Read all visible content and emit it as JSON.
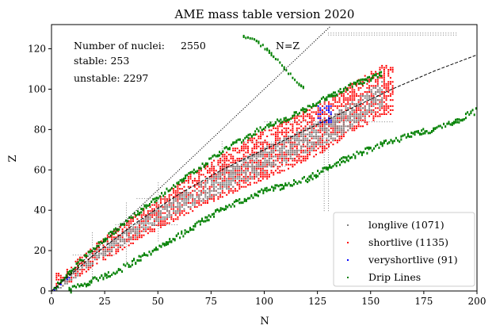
{
  "chart_data": {
    "type": "scatter",
    "title": "AME mass table version 2020",
    "xlabel": "N",
    "ylabel": "Z",
    "xlim": [
      0,
      200
    ],
    "ylim": [
      0,
      132
    ],
    "xticks": [
      0,
      25,
      50,
      75,
      100,
      125,
      150,
      175,
      200
    ],
    "yticks": [
      0,
      20,
      40,
      60,
      80,
      100,
      120
    ],
    "grid": false,
    "legend_position": "bottom-right",
    "annotations": {
      "nuclei_label": "Number of nuclei:",
      "nuclei_value": "2550",
      "stable_text": "stable: 253",
      "unstable_text": "unstable: 2297",
      "nz_label": "N=Z"
    },
    "series": [
      {
        "name": "longlive (1071)",
        "color": "#808080",
        "marker": "square",
        "display": "band",
        "center_line": [
          [
            2,
            1
          ],
          [
            20,
            17
          ],
          [
            50,
            38
          ],
          [
            80,
            55
          ],
          [
            110,
            70
          ],
          [
            130,
            80
          ],
          [
            155,
            98
          ]
        ],
        "half_width_z": 6
      },
      {
        "name": "shortlive (1135)",
        "color": "#ff0000",
        "marker": "square",
        "display": "band",
        "center_line": [
          [
            5,
            6
          ],
          [
            20,
            18
          ],
          [
            40,
            32
          ],
          [
            70,
            52
          ],
          [
            100,
            68
          ],
          [
            125,
            80
          ],
          [
            155,
            100
          ]
        ],
        "half_width_z": 12
      },
      {
        "name": "veryshortlive (91)",
        "color": "#0000ff",
        "marker": "square",
        "display": "band",
        "center_line": [
          [
            2,
            2
          ],
          [
            5,
            5
          ],
          [
            126,
            86
          ],
          [
            128,
            90
          ],
          [
            130,
            88
          ]
        ],
        "half_width_z": 1
      },
      {
        "name": "Drip Lines",
        "color": "#008000",
        "marker": "square",
        "display": "curves",
        "proton_drip": [
          [
            1,
            2
          ],
          [
            10,
            12
          ],
          [
            20,
            22
          ],
          [
            30,
            31
          ],
          [
            40,
            39
          ],
          [
            50,
            47
          ],
          [
            60,
            55
          ],
          [
            70,
            62
          ],
          [
            80,
            70
          ],
          [
            90,
            76
          ],
          [
            100,
            82
          ],
          [
            110,
            86
          ],
          [
            120,
            91
          ],
          [
            130,
            97
          ],
          [
            140,
            102
          ],
          [
            150,
            106
          ],
          [
            155,
            108
          ]
        ],
        "neutron_drip": [
          [
            8,
            1
          ],
          [
            20,
            6
          ],
          [
            30,
            10
          ],
          [
            40,
            16
          ],
          [
            50,
            22
          ],
          [
            60,
            28
          ],
          [
            70,
            35
          ],
          [
            80,
            41
          ],
          [
            90,
            46
          ],
          [
            100,
            50
          ],
          [
            110,
            53
          ],
          [
            120,
            56
          ],
          [
            130,
            62
          ],
          [
            140,
            67
          ],
          [
            150,
            71
          ],
          [
            160,
            75
          ],
          [
            170,
            78
          ],
          [
            180,
            81
          ],
          [
            190,
            85
          ],
          [
            200,
            90
          ]
        ],
        "heavy_branch": [
          [
            90,
            127
          ],
          [
            95,
            125
          ],
          [
            100,
            121
          ],
          [
            105,
            116
          ],
          [
            110,
            110
          ],
          [
            115,
            104
          ],
          [
            118,
            101
          ]
        ]
      }
    ],
    "reference_lines": [
      {
        "label": "N=Z",
        "style": "dotted",
        "points": [
          [
            0,
            0
          ],
          [
            131,
            131
          ]
        ]
      },
      {
        "label": "stability",
        "style": "dashed",
        "points": [
          [
            0,
            0
          ],
          [
            20,
            18
          ],
          [
            40,
            34
          ],
          [
            60,
            48
          ],
          [
            80,
            60
          ],
          [
            100,
            70
          ],
          [
            120,
            80
          ],
          [
            140,
            90
          ],
          [
            160,
            100
          ],
          [
            180,
            109
          ],
          [
            200,
            117
          ]
        ]
      }
    ]
  }
}
